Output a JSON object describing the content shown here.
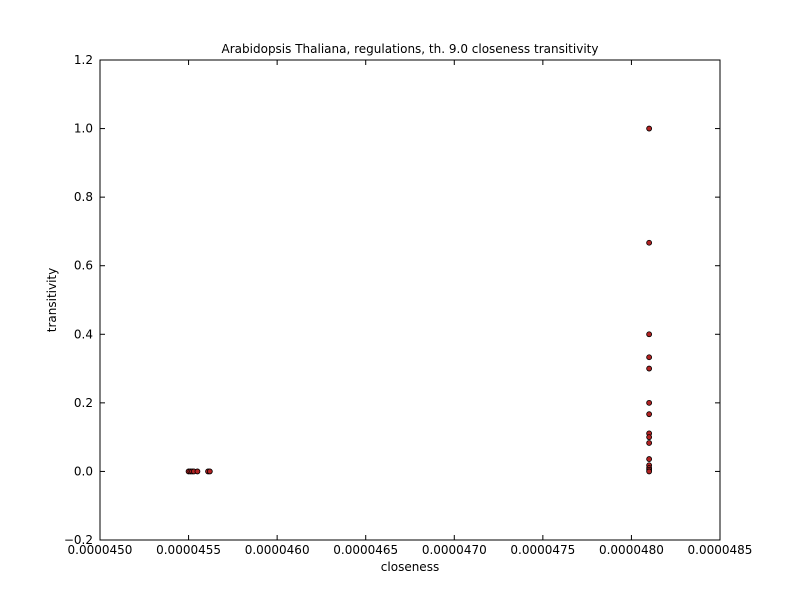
{
  "chart_data": {
    "type": "scatter",
    "title": "Arabidopsis Thaliana, regulations, th. 9.0 closeness transitivity",
    "xlabel": "closeness",
    "ylabel": "transitivity",
    "xlim": [
      4.5e-05,
      4.85e-05
    ],
    "ylim": [
      -0.2,
      1.2
    ],
    "x_ticks": [
      4.5e-05,
      4.55e-05,
      4.6e-05,
      4.65e-05,
      4.7e-05,
      4.75e-05,
      4.8e-05,
      4.85e-05
    ],
    "x_tick_labels": [
      "0.0000450",
      "0.0000455",
      "0.0000460",
      "0.0000465",
      "0.0000470",
      "0.0000475",
      "0.0000480",
      "0.0000485"
    ],
    "y_ticks": [
      -0.2,
      0.0,
      0.2,
      0.4,
      0.6,
      0.8,
      1.0,
      1.2
    ],
    "y_tick_labels": [
      "−0.2",
      "0.0",
      "0.2",
      "0.4",
      "0.6",
      "0.8",
      "1.0",
      "1.2"
    ],
    "grid": false,
    "marker_color": "#b22222",
    "marker_edge_color": "#000000",
    "points": [
      {
        "x": 4.55e-05,
        "y": 0.0
      },
      {
        "x": 4.551e-05,
        "y": 0.0
      },
      {
        "x": 4.552e-05,
        "y": 0.0
      },
      {
        "x": 4.553e-05,
        "y": 0.0
      },
      {
        "x": 4.555e-05,
        "y": 0.0
      },
      {
        "x": 4.561e-05,
        "y": 0.0
      },
      {
        "x": 4.562e-05,
        "y": 0.0
      },
      {
        "x": 4.81e-05,
        "y": 1.0
      },
      {
        "x": 4.81e-05,
        "y": 0.667
      },
      {
        "x": 4.81e-05,
        "y": 0.4
      },
      {
        "x": 4.81e-05,
        "y": 0.333
      },
      {
        "x": 4.81e-05,
        "y": 0.3
      },
      {
        "x": 4.81e-05,
        "y": 0.2
      },
      {
        "x": 4.81e-05,
        "y": 0.167
      },
      {
        "x": 4.81e-05,
        "y": 0.111
      },
      {
        "x": 4.81e-05,
        "y": 0.1
      },
      {
        "x": 4.81e-05,
        "y": 0.083
      },
      {
        "x": 4.81e-05,
        "y": 0.036
      },
      {
        "x": 4.81e-05,
        "y": 0.018
      },
      {
        "x": 4.81e-05,
        "y": 0.01
      },
      {
        "x": 4.81e-05,
        "y": 0.005
      },
      {
        "x": 4.81e-05,
        "y": 0.0
      }
    ]
  }
}
